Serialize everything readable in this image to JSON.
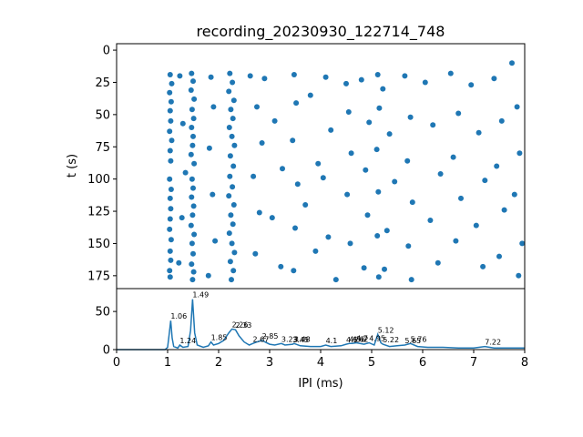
{
  "chart_data": [
    {
      "type": "scatter",
      "title": "recording_20230930_122714_748",
      "xlabel": "",
      "ylabel": "t (s)",
      "xlim": [
        0,
        8
      ],
      "ylim": [
        185,
        -5
      ],
      "y_inverted": true,
      "yticks": [
        0,
        25,
        50,
        75,
        100,
        125,
        150,
        175
      ],
      "marker_color": "#1f77b4",
      "series": [
        {
          "points": [
            [
              1.05,
              19
            ],
            [
              1.08,
              26
            ],
            [
              1.04,
              33
            ],
            [
              1.07,
              40
            ],
            [
              1.05,
              47
            ],
            [
              1.06,
              55
            ],
            [
              1.04,
              63
            ],
            [
              1.08,
              70
            ],
            [
              1.05,
              78
            ],
            [
              1.06,
              86
            ],
            [
              1.04,
              100
            ],
            [
              1.07,
              108
            ],
            [
              1.05,
              115
            ],
            [
              1.06,
              123
            ],
            [
              1.05,
              131
            ],
            [
              1.04,
              139
            ],
            [
              1.07,
              147
            ],
            [
              1.05,
              156
            ],
            [
              1.06,
              163
            ],
            [
              1.04,
              171
            ],
            [
              1.05,
              176
            ],
            [
              1.47,
              18
            ],
            [
              1.5,
              24
            ],
            [
              1.46,
              31
            ],
            [
              1.52,
              38
            ],
            [
              1.48,
              46
            ],
            [
              1.51,
              53
            ],
            [
              1.47,
              60
            ],
            [
              1.5,
              67
            ],
            [
              1.49,
              74
            ],
            [
              1.46,
              81
            ],
            [
              1.52,
              88
            ],
            [
              1.48,
              100
            ],
            [
              1.5,
              107
            ],
            [
              1.47,
              114
            ],
            [
              1.51,
              121
            ],
            [
              1.49,
              128
            ],
            [
              1.46,
              136
            ],
            [
              1.52,
              143
            ],
            [
              1.48,
              150
            ],
            [
              1.5,
              158
            ],
            [
              1.47,
              166
            ],
            [
              1.51,
              172
            ],
            [
              1.49,
              178
            ],
            [
              2.22,
              18
            ],
            [
              2.27,
              25
            ],
            [
              2.2,
              32
            ],
            [
              2.3,
              39
            ],
            [
              2.24,
              46
            ],
            [
              2.28,
              53
            ],
            [
              2.21,
              60
            ],
            [
              2.26,
              67
            ],
            [
              2.31,
              74
            ],
            [
              2.23,
              82
            ],
            [
              2.29,
              90
            ],
            [
              2.22,
              98
            ],
            [
              2.27,
              106
            ],
            [
              2.2,
              113
            ],
            [
              2.3,
              120
            ],
            [
              2.24,
              128
            ],
            [
              2.28,
              135
            ],
            [
              2.21,
              142
            ],
            [
              2.26,
              150
            ],
            [
              2.31,
              157
            ],
            [
              2.23,
              164
            ],
            [
              2.29,
              171
            ],
            [
              2.25,
              178
            ],
            [
              1.24,
              20
            ],
            [
              1.3,
              57
            ],
            [
              1.35,
              95
            ],
            [
              1.28,
              130
            ],
            [
              1.22,
              165
            ],
            [
              1.85,
              21
            ],
            [
              1.9,
              44
            ],
            [
              1.82,
              76
            ],
            [
              1.88,
              112
            ],
            [
              1.93,
              148
            ],
            [
              1.8,
              175
            ],
            [
              2.62,
              20
            ],
            [
              2.75,
              44
            ],
            [
              2.85,
              72
            ],
            [
              2.68,
              98
            ],
            [
              2.8,
              126
            ],
            [
              2.72,
              158
            ],
            [
              2.9,
              22
            ],
            [
              3.1,
              55
            ],
            [
              3.25,
              92
            ],
            [
              3.05,
              130
            ],
            [
              3.22,
              168
            ],
            [
              3.48,
              19
            ],
            [
              3.52,
              41
            ],
            [
              3.45,
              70
            ],
            [
              3.55,
              104
            ],
            [
              3.5,
              138
            ],
            [
              3.47,
              171
            ],
            [
              3.8,
              35
            ],
            [
              3.95,
              88
            ],
            [
              3.7,
              120
            ],
            [
              3.9,
              156
            ],
            [
              4.1,
              21
            ],
            [
              4.2,
              62
            ],
            [
              4.05,
              99
            ],
            [
              4.15,
              145
            ],
            [
              4.3,
              178
            ],
            [
              4.5,
              26
            ],
            [
              4.55,
              48
            ],
            [
              4.6,
              80
            ],
            [
              4.52,
              112
            ],
            [
              4.58,
              150
            ],
            [
              4.8,
              23
            ],
            [
              4.95,
              56
            ],
            [
              4.88,
              93
            ],
            [
              4.92,
              128
            ],
            [
              4.85,
              169
            ],
            [
              5.12,
              19
            ],
            [
              5.15,
              45
            ],
            [
              5.1,
              77
            ],
            [
              5.13,
              110
            ],
            [
              5.11,
              144
            ],
            [
              5.14,
              176
            ],
            [
              5.22,
              30
            ],
            [
              5.35,
              65
            ],
            [
              5.45,
              102
            ],
            [
              5.3,
              140
            ],
            [
              5.25,
              170
            ],
            [
              5.65,
              20
            ],
            [
              5.76,
              52
            ],
            [
              5.7,
              86
            ],
            [
              5.8,
              118
            ],
            [
              5.72,
              152
            ],
            [
              5.78,
              178
            ],
            [
              6.05,
              25
            ],
            [
              6.2,
              58
            ],
            [
              6.35,
              96
            ],
            [
              6.15,
              132
            ],
            [
              6.3,
              165
            ],
            [
              6.55,
              18
            ],
            [
              6.7,
              49
            ],
            [
              6.6,
              83
            ],
            [
              6.75,
              115
            ],
            [
              6.65,
              148
            ],
            [
              6.95,
              27
            ],
            [
              7.1,
              64
            ],
            [
              7.22,
              101
            ],
            [
              7.05,
              136
            ],
            [
              7.18,
              168
            ],
            [
              7.4,
              22
            ],
            [
              7.55,
              55
            ],
            [
              7.45,
              90
            ],
            [
              7.6,
              124
            ],
            [
              7.5,
              160
            ],
            [
              7.75,
              10
            ],
            [
              7.85,
              44
            ],
            [
              7.9,
              80
            ],
            [
              7.8,
              112
            ],
            [
              7.95,
              150
            ],
            [
              7.88,
              175
            ]
          ]
        }
      ]
    },
    {
      "type": "line",
      "title": "",
      "xlabel": "IPI (ms)",
      "ylabel": "",
      "xlim": [
        0,
        8
      ],
      "ylim": [
        0,
        80
      ],
      "xticks": [
        0,
        1,
        2,
        3,
        4,
        5,
        6,
        7,
        8
      ],
      "yticks": [
        0,
        50
      ],
      "line_color": "#1f77b4",
      "series": [
        {
          "x": [
            0,
            0.5,
            0.95,
            1.0,
            1.03,
            1.06,
            1.09,
            1.12,
            1.2,
            1.24,
            1.3,
            1.4,
            1.45,
            1.49,
            1.53,
            1.58,
            1.7,
            1.8,
            1.85,
            1.9,
            2.0,
            2.1,
            2.2,
            2.26,
            2.33,
            2.4,
            2.5,
            2.6,
            2.67,
            2.75,
            2.85,
            3.0,
            3.1,
            3.23,
            3.3,
            3.45,
            3.48,
            3.6,
            3.8,
            4.0,
            4.1,
            4.2,
            4.4,
            4.5,
            4.56,
            4.62,
            4.7,
            4.85,
            4.95,
            5.05,
            5.12,
            5.18,
            5.22,
            5.35,
            5.5,
            5.65,
            5.76,
            5.9,
            6.1,
            6.4,
            6.7,
            7.0,
            7.22,
            7.4,
            7.7,
            8.0
          ],
          "y": [
            0,
            0,
            0,
            3,
            20,
            38,
            15,
            4,
            2,
            6,
            3,
            4,
            25,
            66,
            22,
            6,
            3,
            5,
            10,
            6,
            8,
            12,
            22,
            27,
            26,
            18,
            10,
            6,
            8,
            10,
            12,
            7,
            6,
            8,
            6,
            7,
            8,
            5,
            4,
            4,
            6,
            4,
            5,
            7,
            8,
            8,
            9,
            7,
            9,
            6,
            20,
            9,
            7,
            4,
            5,
            6,
            8,
            4,
            3,
            3,
            2,
            2,
            4,
            2,
            2,
            2
          ]
        }
      ],
      "peak_labels": [
        {
          "x": 1.06,
          "y": 38,
          "text": "1.06"
        },
        {
          "x": 1.24,
          "y": 6,
          "text": "1.24"
        },
        {
          "x": 1.49,
          "y": 66,
          "text": "1.49"
        },
        {
          "x": 1.85,
          "y": 10,
          "text": "1.85"
        },
        {
          "x": 2.26,
          "y": 27,
          "text": "2.26"
        },
        {
          "x": 2.33,
          "y": 26,
          "text": "2.33"
        },
        {
          "x": 2.67,
          "y": 8,
          "text": "2.67"
        },
        {
          "x": 2.85,
          "y": 12,
          "text": "2.85"
        },
        {
          "x": 3.23,
          "y": 8,
          "text": "3.23"
        },
        {
          "x": 3.45,
          "y": 7,
          "text": "3.45"
        },
        {
          "x": 3.48,
          "y": 8,
          "text": "3.48"
        },
        {
          "x": 4.1,
          "y": 6,
          "text": "4.1"
        },
        {
          "x": 4.5,
          "y": 7,
          "text": "4.5"
        },
        {
          "x": 4.56,
          "y": 8,
          "text": "4.56"
        },
        {
          "x": 4.62,
          "y": 8,
          "text": "4.62"
        },
        {
          "x": 4.7,
          "y": 9,
          "text": "4.7"
        },
        {
          "x": 4.95,
          "y": 9,
          "text": "4.95"
        },
        {
          "x": 5.12,
          "y": 20,
          "text": "5.12"
        },
        {
          "x": 5.22,
          "y": 7,
          "text": "5.22"
        },
        {
          "x": 5.65,
          "y": 6,
          "text": "5.65"
        },
        {
          "x": 5.76,
          "y": 8,
          "text": "5.76"
        },
        {
          "x": 7.22,
          "y": 4,
          "text": "7.22"
        }
      ]
    }
  ]
}
